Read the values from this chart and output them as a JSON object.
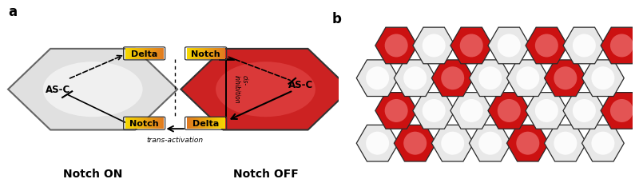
{
  "panel_a_label": "a",
  "panel_b_label": "b",
  "notch_on_label": "Notch ON",
  "notch_off_label": "Notch OFF",
  "trans_activation_label": "trans-activation",
  "cis_inhibition_label": "cis-\ninhibition",
  "as_c_label": "AS-C",
  "delta_label": "Delta",
  "notch_label": "Notch",
  "left_hex_color_top": "#ffffff",
  "left_hex_color_bot": "#cccccc",
  "right_hex_color": "#cc2222",
  "box_bg_orange": "#e07820",
  "box_bg_yellow": "#f5d800",
  "hex_grid_red": "#cc2222",
  "hex_grid_white": "#f5f5f5",
  "hex_edge_color": "#222222",
  "hex_pattern": [
    [
      0,
      1,
      0,
      0,
      1,
      0,
      0
    ],
    [
      1,
      0,
      0,
      1,
      0,
      0,
      1
    ],
    [
      0,
      0,
      1,
      0,
      0,
      1,
      0
    ],
    [
      1,
      0,
      1,
      0,
      1,
      0,
      1
    ]
  ],
  "n_hex_cols": 7,
  "n_hex_rows": 4
}
